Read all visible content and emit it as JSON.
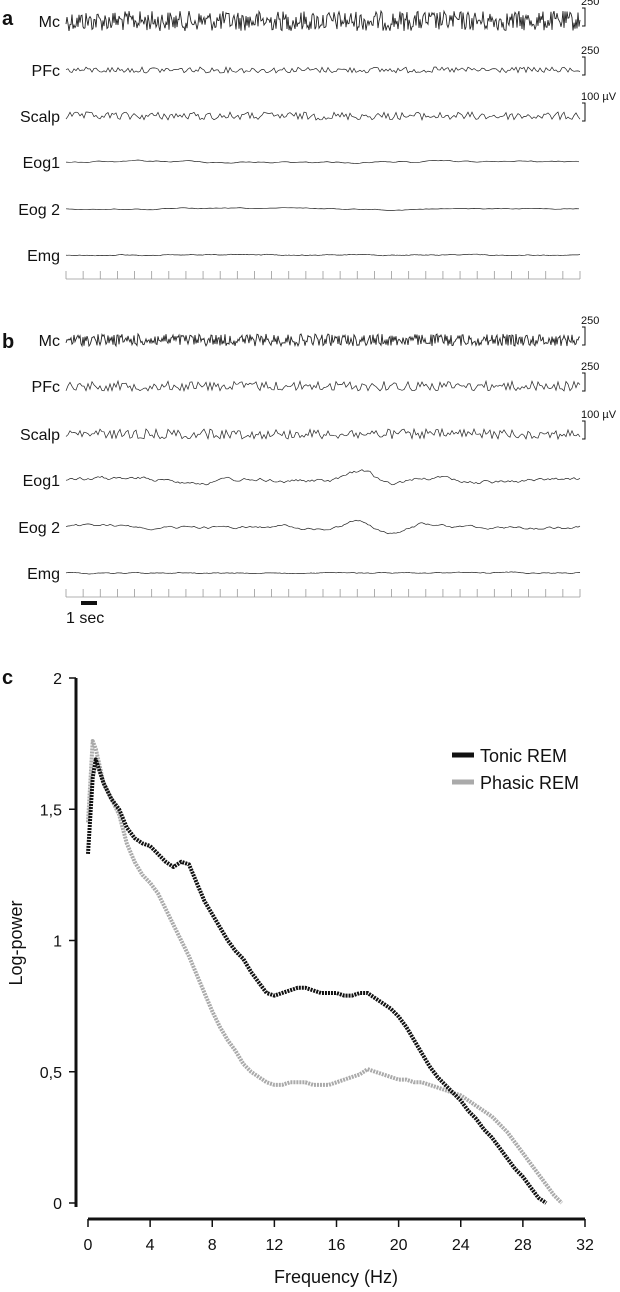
{
  "panels": {
    "a": {
      "letter": "a"
    },
    "b": {
      "letter": "b",
      "scalebar_label": "1 sec"
    },
    "c": {
      "letter": "c"
    }
  },
  "traces": {
    "channels": [
      {
        "name": "Mc",
        "scale": "250"
      },
      {
        "name": "PFc",
        "scale": "250"
      },
      {
        "name": "Scalp",
        "scale": "100 µV"
      },
      {
        "name": "Eog1",
        "scale": ""
      },
      {
        "name": "Eog 2",
        "scale": ""
      },
      {
        "name": "Emg",
        "scale": ""
      }
    ]
  },
  "chart_data": {
    "type": "line",
    "title": "",
    "xlabel": "Frequency (Hz)",
    "ylabel": "Log-power",
    "xlim": [
      0,
      32
    ],
    "ylim": [
      0,
      2
    ],
    "xticks": [
      "0",
      "4",
      "8",
      "12",
      "16",
      "20",
      "24",
      "28",
      "32"
    ],
    "yticks": [
      "0",
      "0,5",
      "1",
      "1,5",
      "2"
    ],
    "legend_position": "top-right",
    "series": [
      {
        "name": "Tonic REM",
        "color": "#111111",
        "x": [
          0,
          0.3,
          0.5,
          1,
          1.5,
          2,
          2.5,
          3,
          3.5,
          4,
          4.5,
          5,
          5.5,
          6,
          6.5,
          7,
          7.5,
          8,
          8.5,
          9,
          9.5,
          10,
          10.5,
          11,
          11.5,
          12,
          12.5,
          13,
          13.5,
          14,
          14.5,
          15,
          15.5,
          16,
          16.5,
          17,
          17.5,
          18,
          18.5,
          19,
          19.5,
          20,
          20.5,
          21,
          21.5,
          22,
          22.5,
          23,
          23.5,
          24,
          24.5,
          25,
          25.5,
          26,
          26.5,
          27,
          27.5,
          28,
          28.5,
          29,
          29.5
        ],
        "y": [
          1.33,
          1.62,
          1.69,
          1.6,
          1.54,
          1.5,
          1.43,
          1.39,
          1.37,
          1.36,
          1.33,
          1.3,
          1.28,
          1.3,
          1.29,
          1.22,
          1.15,
          1.1,
          1.05,
          1.0,
          0.96,
          0.93,
          0.88,
          0.84,
          0.8,
          0.79,
          0.8,
          0.81,
          0.82,
          0.82,
          0.81,
          0.8,
          0.8,
          0.8,
          0.79,
          0.79,
          0.8,
          0.8,
          0.78,
          0.76,
          0.74,
          0.71,
          0.67,
          0.62,
          0.57,
          0.52,
          0.48,
          0.45,
          0.42,
          0.39,
          0.35,
          0.32,
          0.28,
          0.25,
          0.21,
          0.17,
          0.13,
          0.1,
          0.06,
          0.02,
          0.0
        ]
      },
      {
        "name": "Phasic REM",
        "color": "#aaaaaa",
        "x": [
          0,
          0.3,
          0.5,
          1,
          1.5,
          2,
          2.5,
          3,
          3.5,
          4,
          4.5,
          5,
          5.5,
          6,
          6.5,
          7,
          7.5,
          8,
          8.5,
          9,
          9.5,
          10,
          10.5,
          11,
          11.5,
          12,
          12.5,
          13,
          13.5,
          14,
          14.5,
          15,
          15.5,
          16,
          16.5,
          17,
          17.5,
          18,
          18.5,
          19,
          19.5,
          20,
          20.5,
          21,
          21.5,
          22,
          22.5,
          23,
          23.5,
          24,
          24.5,
          25,
          25.5,
          26,
          26.5,
          27,
          27.5,
          28,
          28.5,
          29,
          29.5,
          30,
          30.5
        ],
        "y": [
          1.45,
          1.76,
          1.73,
          1.6,
          1.54,
          1.48,
          1.37,
          1.3,
          1.25,
          1.22,
          1.18,
          1.12,
          1.06,
          1.0,
          0.94,
          0.87,
          0.8,
          0.73,
          0.67,
          0.62,
          0.58,
          0.53,
          0.5,
          0.48,
          0.46,
          0.45,
          0.45,
          0.46,
          0.46,
          0.46,
          0.45,
          0.45,
          0.45,
          0.46,
          0.47,
          0.48,
          0.49,
          0.51,
          0.5,
          0.49,
          0.48,
          0.47,
          0.47,
          0.46,
          0.46,
          0.45,
          0.44,
          0.43,
          0.42,
          0.41,
          0.39,
          0.37,
          0.35,
          0.33,
          0.3,
          0.27,
          0.23,
          0.19,
          0.15,
          0.11,
          0.07,
          0.03,
          0.0
        ]
      }
    ]
  }
}
